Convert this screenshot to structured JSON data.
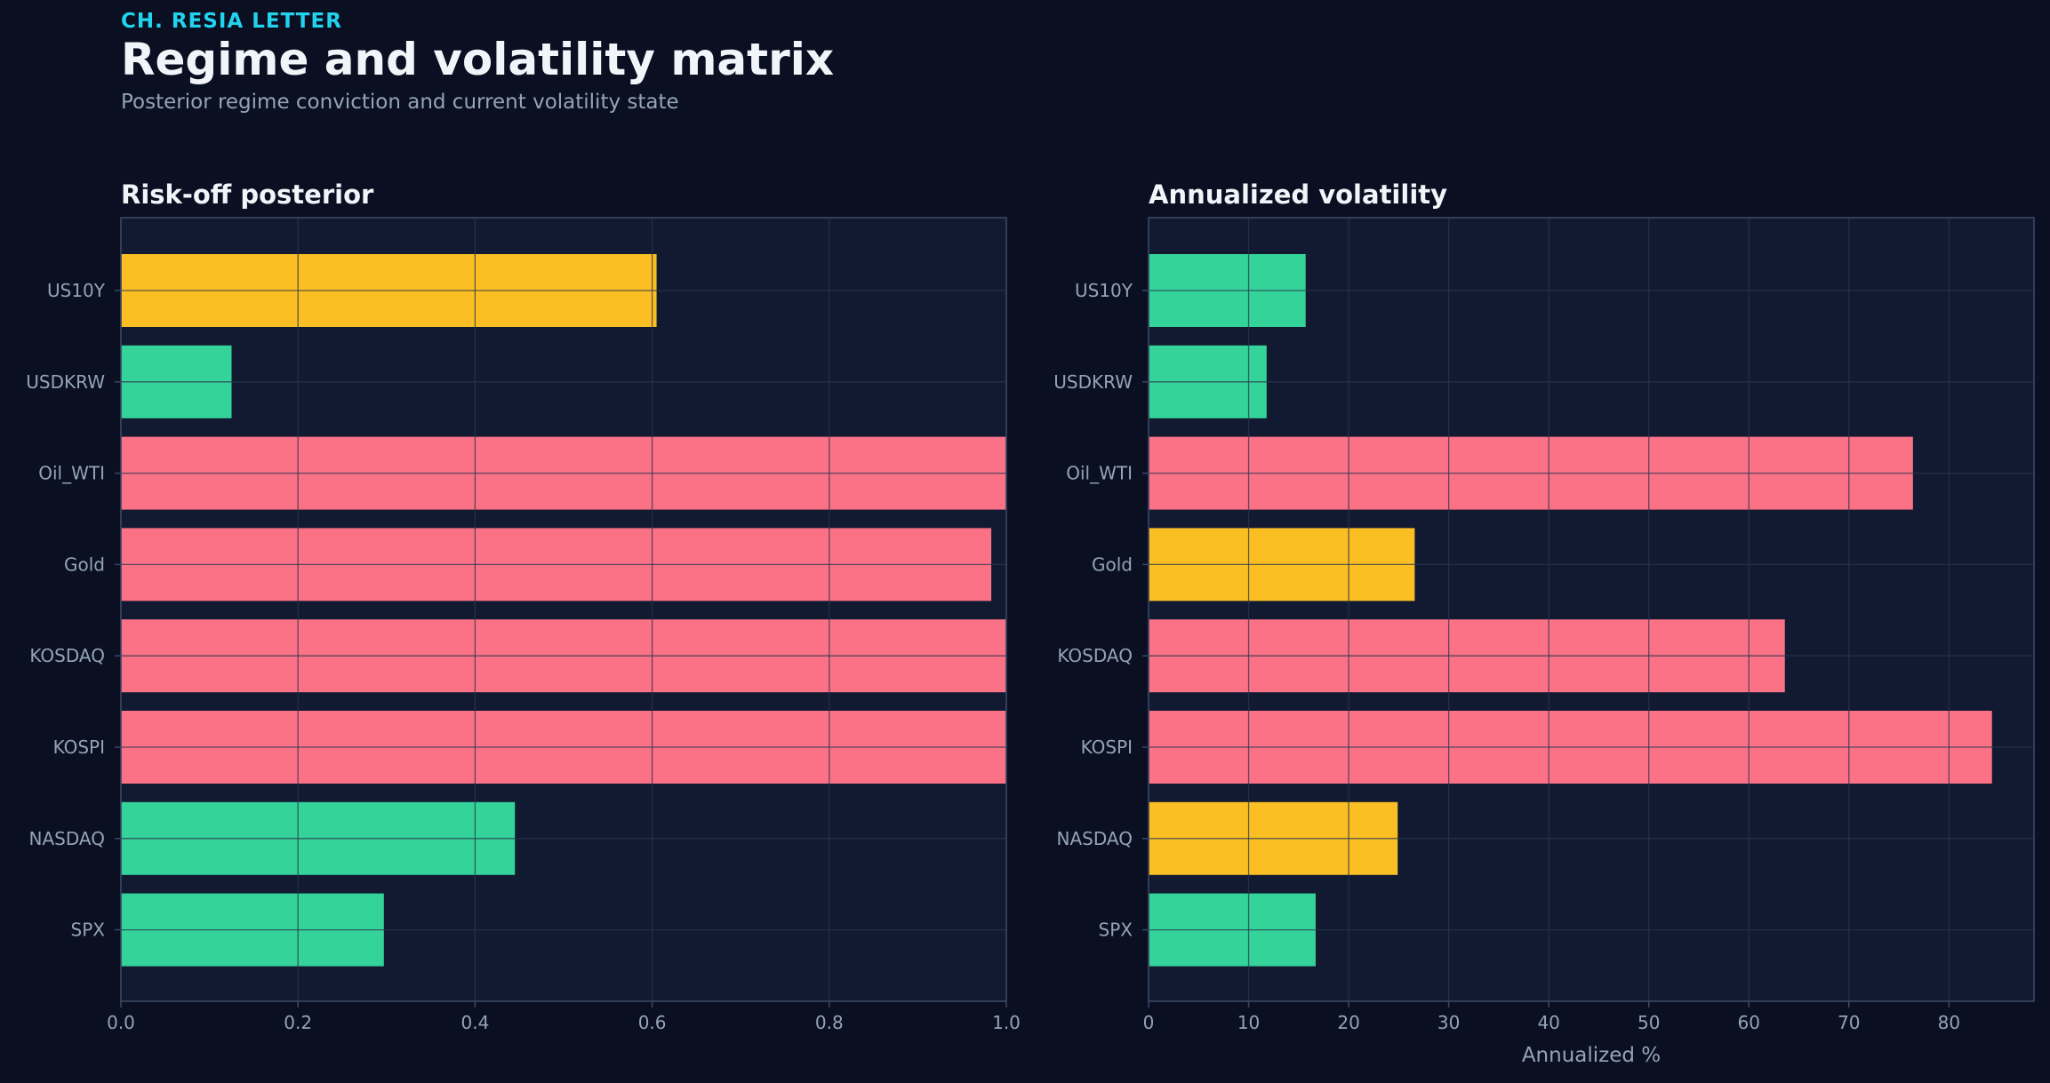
{
  "header": {
    "kicker": "CH. RESIA LETTER",
    "title": "Regime and volatility matrix",
    "subtitle": "Posterior regime conviction and current volatility state"
  },
  "colors": {
    "background": "#0a1022",
    "panel": "#111a30",
    "grid": "#2a3550",
    "border": "#3b4766",
    "text": "#f1f5f9",
    "muted": "#94a3b8",
    "accent": "#22d3ee",
    "green": "#34d399",
    "yellow": "#fbbf24",
    "red": "#fb7185"
  },
  "chart_data": [
    {
      "type": "bar",
      "orientation": "horizontal",
      "title": "Risk-off posterior",
      "xlabel": "",
      "ylabel": "",
      "xlim": [
        0,
        1.0
      ],
      "xticks": [
        "0.0",
        "0.2",
        "0.4",
        "0.6",
        "0.8",
        "1.0"
      ],
      "xtick_values": [
        0,
        0.2,
        0.4,
        0.6,
        0.8,
        1.0
      ],
      "grid": true,
      "categories": [
        "US10Y",
        "USDKRW",
        "Oil_WTI",
        "Gold",
        "KOSDAQ",
        "KOSPI",
        "NASDAQ",
        "SPX"
      ],
      "values": [
        0.605,
        0.125,
        1.0,
        0.983,
        1.0,
        1.0,
        0.445,
        0.297
      ],
      "bar_colors": [
        "yellow",
        "green",
        "red",
        "red",
        "red",
        "red",
        "green",
        "green"
      ]
    },
    {
      "type": "bar",
      "orientation": "horizontal",
      "title": "Annualized volatility",
      "xlabel": "Annualized %",
      "ylabel": "",
      "xlim": [
        0,
        88.5
      ],
      "xticks": [
        "0",
        "10",
        "20",
        "30",
        "40",
        "50",
        "60",
        "70",
        "80"
      ],
      "xtick_values": [
        0,
        10,
        20,
        30,
        40,
        50,
        60,
        70,
        80
      ],
      "grid": true,
      "categories": [
        "US10Y",
        "USDKRW",
        "Oil_WTI",
        "Gold",
        "KOSDAQ",
        "KOSPI",
        "NASDAQ",
        "SPX"
      ],
      "values": [
        15.7,
        11.8,
        76.4,
        26.6,
        63.6,
        84.3,
        24.9,
        16.7
      ],
      "bar_colors": [
        "green",
        "green",
        "red",
        "yellow",
        "red",
        "red",
        "yellow",
        "green"
      ]
    }
  ]
}
